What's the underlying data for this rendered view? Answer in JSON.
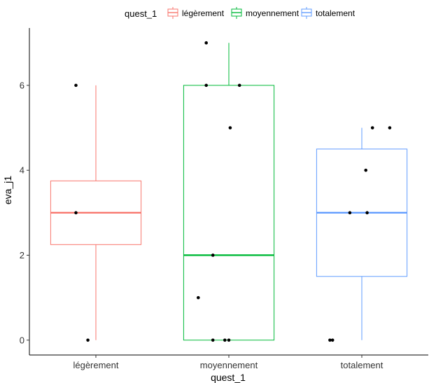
{
  "chart_data": {
    "type": "boxplot",
    "xlabel": "quest_1",
    "ylabel": "eva_j1",
    "categories": [
      "légèrement",
      "moyennement",
      "totalement"
    ],
    "ylim": [
      -0.35,
      7.35
    ],
    "yticks": [
      0,
      2,
      4,
      6
    ],
    "grid": false,
    "legend": {
      "title": "quest_1",
      "position": "top",
      "entries": [
        "légèrement",
        "moyennement",
        "totalement"
      ]
    },
    "colors": [
      "#F8766D",
      "#00BA38",
      "#619CFF"
    ],
    "boxes": [
      {
        "category": "légèrement",
        "q1": 2.25,
        "median": 3,
        "q3": 3.75,
        "whisker_low": 0,
        "whisker_high": 6
      },
      {
        "category": "moyennement",
        "q1": 0,
        "median": 2,
        "q3": 6,
        "whisker_low": 0,
        "whisker_high": 7
      },
      {
        "category": "totalement",
        "q1": 1.5,
        "median": 3,
        "q3": 4.5,
        "whisker_low": 0,
        "whisker_high": 5
      }
    ],
    "points": [
      {
        "category": "légèrement",
        "jitter": -0.15,
        "y": 6
      },
      {
        "category": "légèrement",
        "jitter": -0.15,
        "y": 3
      },
      {
        "category": "légèrement",
        "jitter": -0.06,
        "y": 0
      },
      {
        "category": "moyennement",
        "jitter": -0.17,
        "y": 7
      },
      {
        "category": "moyennement",
        "jitter": -0.17,
        "y": 6
      },
      {
        "category": "moyennement",
        "jitter": 0.08,
        "y": 6
      },
      {
        "category": "moyennement",
        "jitter": 0.01,
        "y": 5
      },
      {
        "category": "moyennement",
        "jitter": -0.12,
        "y": 2
      },
      {
        "category": "moyennement",
        "jitter": -0.23,
        "y": 1
      },
      {
        "category": "moyennement",
        "jitter": -0.12,
        "y": 0
      },
      {
        "category": "moyennement",
        "jitter": -0.03,
        "y": 0
      },
      {
        "category": "moyennement",
        "jitter": 0.0,
        "y": 0
      },
      {
        "category": "totalement",
        "jitter": 0.08,
        "y": 5
      },
      {
        "category": "totalement",
        "jitter": 0.21,
        "y": 5
      },
      {
        "category": "totalement",
        "jitter": 0.03,
        "y": 4
      },
      {
        "category": "totalement",
        "jitter": -0.09,
        "y": 3
      },
      {
        "category": "totalement",
        "jitter": 0.04,
        "y": 3
      },
      {
        "category": "totalement",
        "jitter": -0.24,
        "y": 0
      },
      {
        "category": "totalement",
        "jitter": -0.22,
        "y": 0
      }
    ]
  }
}
